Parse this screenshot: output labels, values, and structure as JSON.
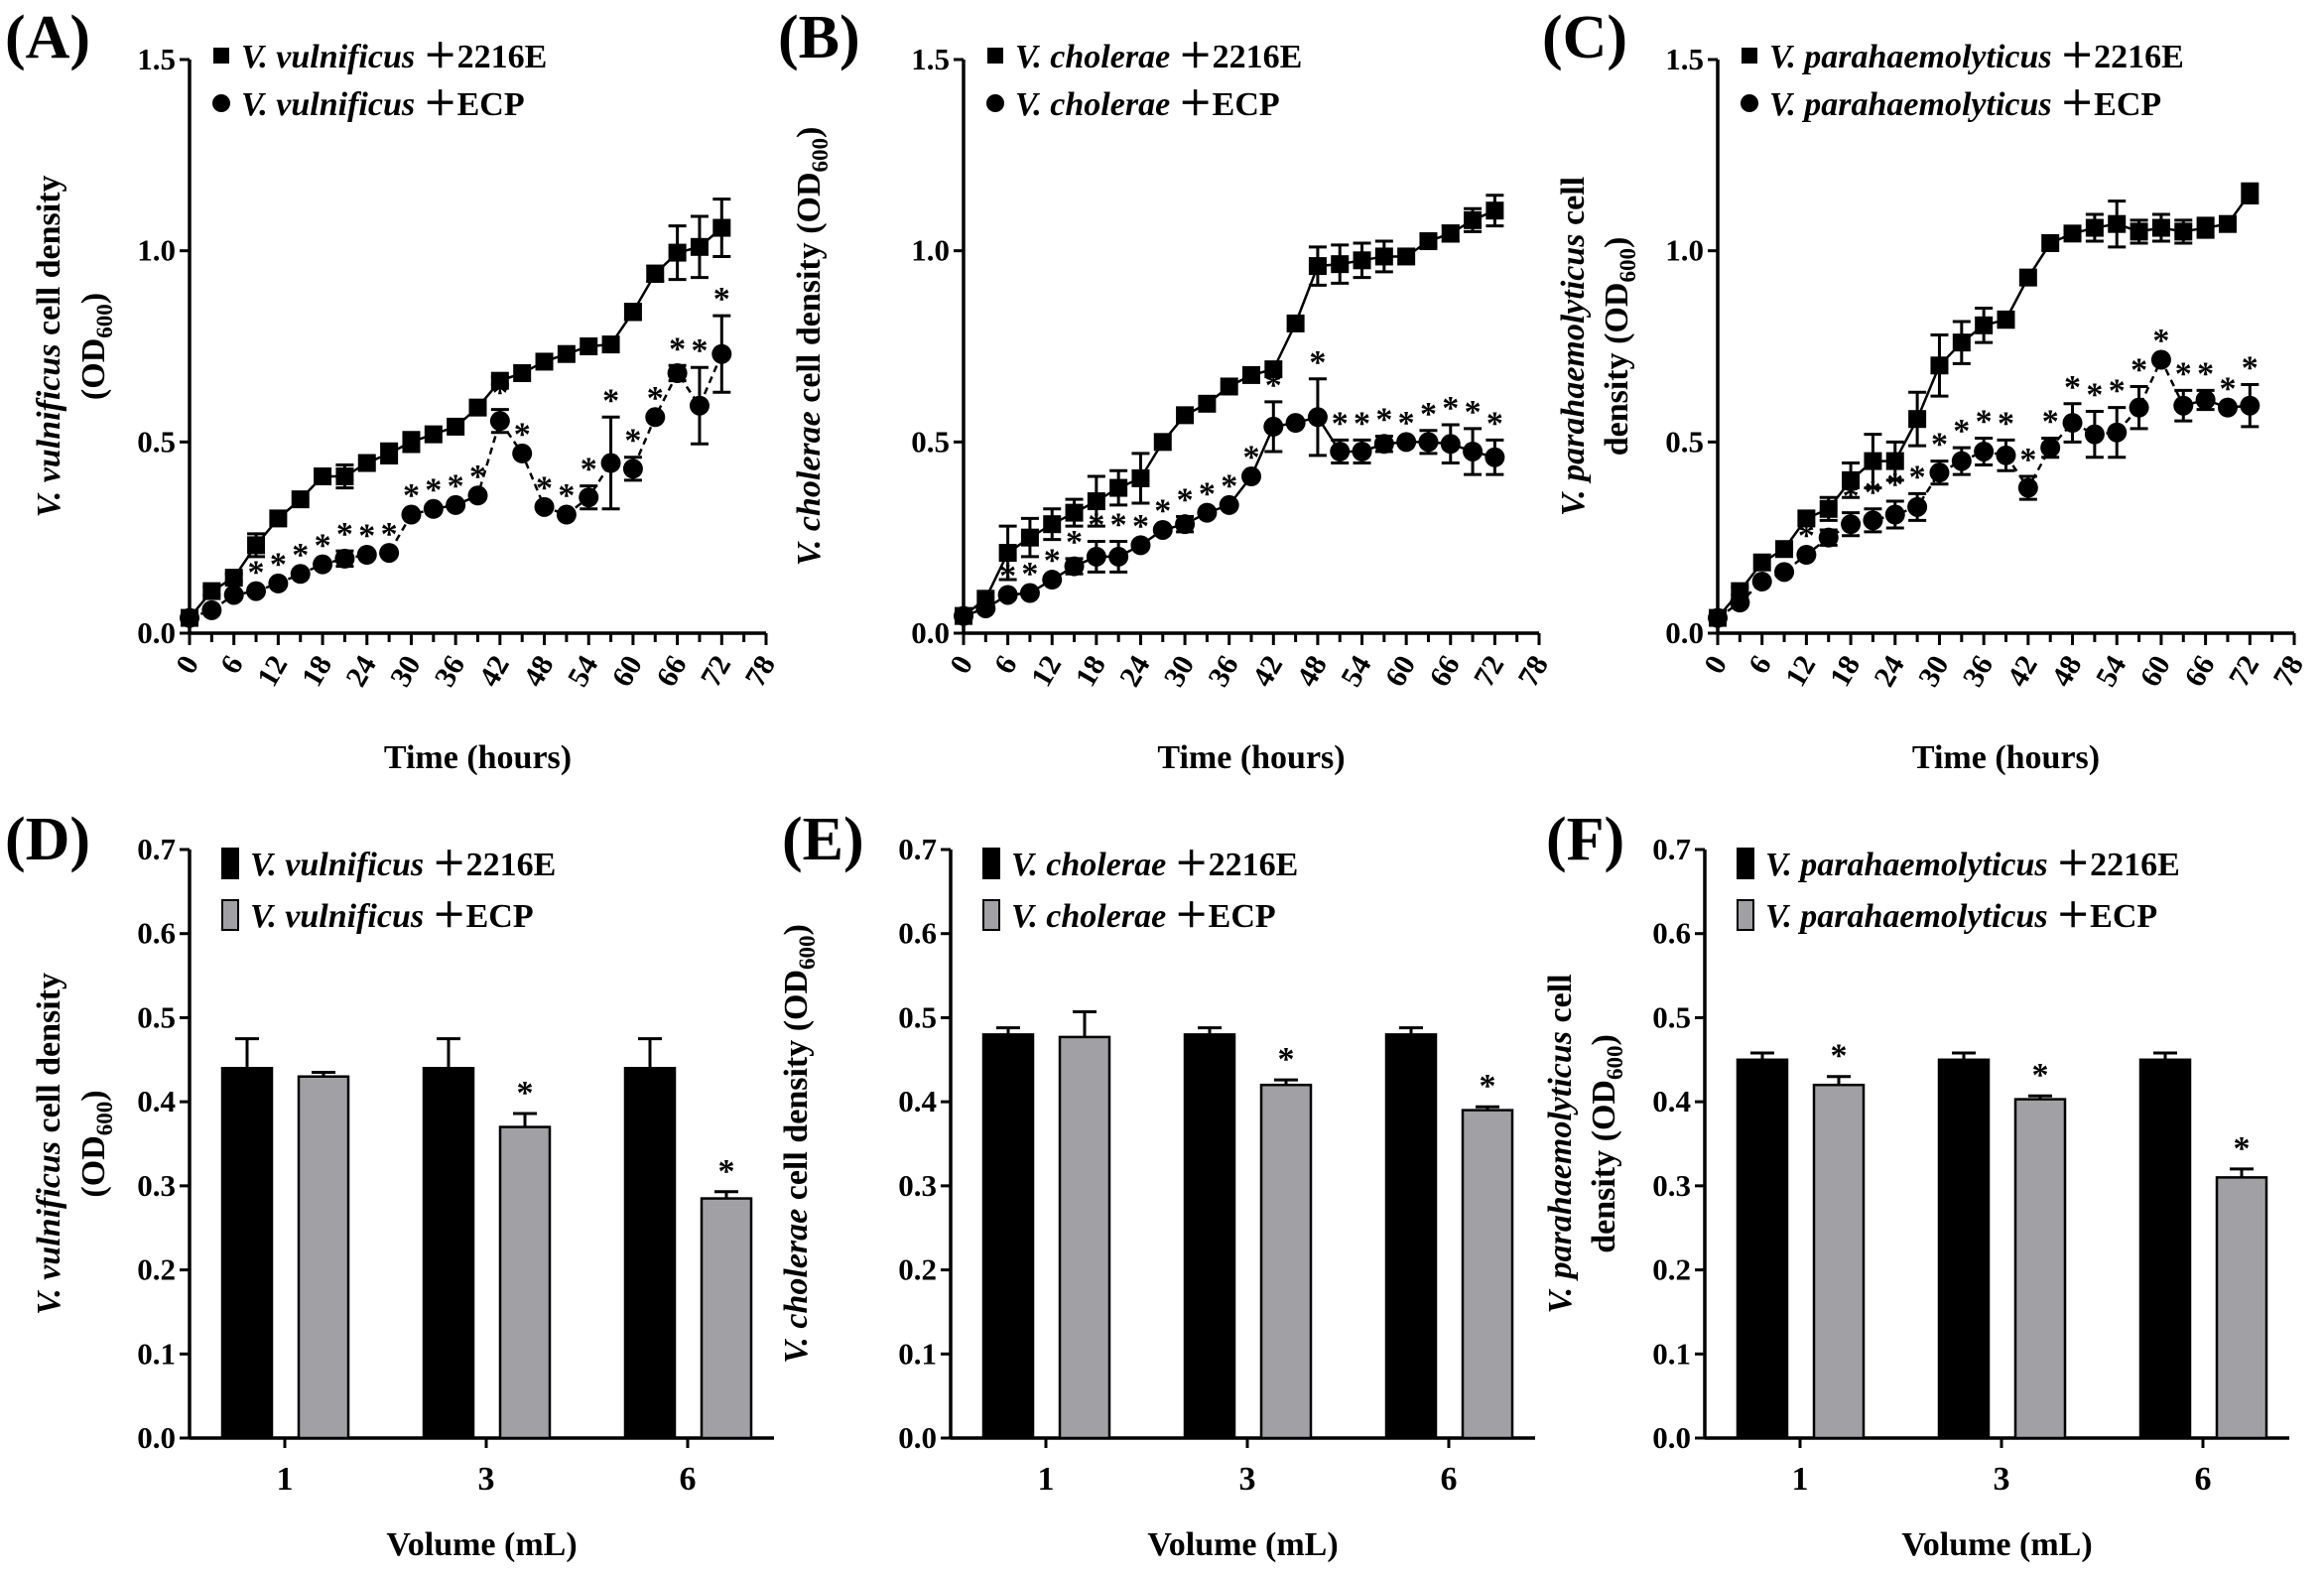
{
  "chart_data": [
    {
      "type": "line",
      "panel_label": "(A)",
      "xlabel": "Time (hours)",
      "ylabel": [
        [
          {
            "t": "V. vulnificus",
            "s": "i"
          },
          {
            "t": " cell density",
            "s": "n"
          }
        ],
        [
          {
            "t": "(OD",
            "s": "n"
          },
          {
            "t": "600",
            "s": "sub"
          },
          {
            "t": ")",
            "s": "n"
          }
        ]
      ],
      "xlim": [
        0,
        78
      ],
      "ylim": [
        0,
        1.5
      ],
      "xticks": [
        "0",
        "6",
        "12",
        "18",
        "24",
        "30",
        "36",
        "42",
        "48",
        "54",
        "60",
        "66",
        "72",
        "78"
      ],
      "yticks": [
        "0.0",
        "0.5",
        "1.0",
        "1.5"
      ],
      "x": [
        0,
        3,
        6,
        9,
        12,
        15,
        18,
        21,
        24,
        27,
        30,
        33,
        36,
        39,
        42,
        45,
        48,
        51,
        54,
        57,
        60,
        63,
        66,
        69,
        72
      ],
      "series": [
        {
          "species": "V. vulnificus",
          "medium": " ＋2216E",
          "marker": "square",
          "dashed": false,
          "values": [
            0.04,
            0.11,
            0.145,
            0.23,
            0.3,
            0.35,
            0.41,
            0.41,
            0.445,
            0.47,
            0.5,
            0.52,
            0.54,
            0.59,
            0.66,
            0.68,
            0.71,
            0.73,
            0.75,
            0.755,
            0.84,
            0.94,
            0.995,
            1.01,
            1.06
          ],
          "errors": [
            0.005,
            0.01,
            0.01,
            0.03,
            0.005,
            0.005,
            0.005,
            0.03,
            0.005,
            0.025,
            0.025,
            0.005,
            0.005,
            0.005,
            0.01,
            0.005,
            0.005,
            0.005,
            0.005,
            0.005,
            0.02,
            0.02,
            0.07,
            0.08,
            0.075
          ],
          "significant": []
        },
        {
          "species": "V. vulnificus",
          "medium": " ＋ECP",
          "marker": "circle",
          "dashed": true,
          "values": [
            0.04,
            0.06,
            0.1,
            0.11,
            0.13,
            0.155,
            0.18,
            0.195,
            0.205,
            0.21,
            0.31,
            0.325,
            0.335,
            0.36,
            0.555,
            0.47,
            0.33,
            0.31,
            0.355,
            0.445,
            0.43,
            0.565,
            0.68,
            0.595,
            0.73
          ],
          "errors": [
            0.005,
            0.005,
            0.005,
            0.005,
            0.005,
            0.005,
            0.005,
            0.02,
            0.005,
            0.005,
            0.005,
            0.005,
            0.005,
            0.005,
            0.03,
            0.005,
            0.005,
            0.005,
            0.03,
            0.12,
            0.03,
            0.005,
            0.02,
            0.1,
            0.1
          ],
          "significant": [
            3,
            4,
            5,
            6,
            7,
            8,
            9,
            10,
            11,
            12,
            13,
            14,
            15,
            16,
            17,
            18,
            19,
            20,
            21,
            22,
            23,
            24
          ]
        }
      ],
      "star": "*"
    },
    {
      "type": "line",
      "panel_label": "(B)",
      "xlabel": "Time (hours)",
      "ylabel": [
        [
          {
            "t": "V. cholerae",
            "s": "i"
          },
          {
            "t": " cell density (OD",
            "s": "n"
          },
          {
            "t": "600",
            "s": "sub"
          },
          {
            "t": ")",
            "s": "n"
          }
        ]
      ],
      "xlim": [
        0,
        78
      ],
      "ylim": [
        0,
        1.5
      ],
      "xticks": [
        "0",
        "6",
        "12",
        "18",
        "24",
        "30",
        "36",
        "42",
        "48",
        "54",
        "60",
        "66",
        "72",
        "78"
      ],
      "yticks": [
        "0.0",
        "0.5",
        "1.0",
        "1.5"
      ],
      "x": [
        0,
        3,
        6,
        9,
        12,
        15,
        18,
        21,
        24,
        27,
        30,
        33,
        36,
        39,
        42,
        45,
        48,
        51,
        54,
        57,
        60,
        63,
        66,
        69,
        72
      ],
      "series": [
        {
          "species": "V. cholerae",
          "medium": " ＋2216E",
          "marker": "square",
          "dashed": false,
          "values": [
            0.045,
            0.09,
            0.21,
            0.25,
            0.285,
            0.315,
            0.345,
            0.38,
            0.405,
            0.5,
            0.57,
            0.6,
            0.645,
            0.675,
            0.69,
            0.81,
            0.96,
            0.965,
            0.975,
            0.985,
            0.985,
            1.025,
            1.045,
            1.08,
            1.105
          ],
          "errors": [
            0.005,
            0.005,
            0.07,
            0.05,
            0.04,
            0.035,
            0.065,
            0.045,
            0.065,
            0.005,
            0.005,
            0.005,
            0.005,
            0.005,
            0.005,
            0.005,
            0.05,
            0.05,
            0.045,
            0.04,
            0.005,
            0.015,
            0.02,
            0.03,
            0.04
          ],
          "significant": []
        },
        {
          "species": "V. cholerae",
          "medium": " ＋ECP",
          "marker": "circle",
          "dashed": false,
          "values": [
            0.045,
            0.065,
            0.1,
            0.105,
            0.14,
            0.175,
            0.2,
            0.2,
            0.23,
            0.27,
            0.285,
            0.315,
            0.335,
            0.41,
            0.54,
            0.55,
            0.565,
            0.475,
            0.475,
            0.495,
            0.5,
            0.5,
            0.495,
            0.475,
            0.46
          ],
          "errors": [
            0.005,
            0.005,
            0.005,
            0.005,
            0.005,
            0.02,
            0.04,
            0.04,
            0.005,
            0.005,
            0.02,
            0.005,
            0.005,
            0.005,
            0.065,
            0.005,
            0.1,
            0.03,
            0.03,
            0.02,
            0.005,
            0.03,
            0.05,
            0.06,
            0.045
          ],
          "significant": [
            2,
            3,
            4,
            5,
            6,
            7,
            8,
            9,
            10,
            11,
            12,
            13,
            14,
            16,
            17,
            18,
            19,
            20,
            21,
            22,
            23,
            24
          ]
        }
      ],
      "star": "*"
    },
    {
      "type": "line",
      "panel_label": "(C)",
      "xlabel": "Time (hours)",
      "ylabel": [
        [
          {
            "t": "V. parahaemolyticus",
            "s": "i"
          },
          {
            "t": " cell",
            "s": "n"
          }
        ],
        [
          {
            "t": "density (OD",
            "s": "n"
          },
          {
            "t": "600",
            "s": "sub"
          },
          {
            "t": ")",
            "s": "n"
          }
        ]
      ],
      "xlim": [
        0,
        78
      ],
      "ylim": [
        0,
        1.5
      ],
      "xticks": [
        "0",
        "6",
        "12",
        "18",
        "24",
        "30",
        "36",
        "42",
        "48",
        "54",
        "60",
        "66",
        "72",
        "78"
      ],
      "yticks": [
        "0.0",
        "0.5",
        "1.0",
        "1.5"
      ],
      "x": [
        0,
        3,
        6,
        9,
        12,
        15,
        18,
        21,
        24,
        27,
        30,
        33,
        36,
        39,
        42,
        45,
        48,
        51,
        54,
        57,
        60,
        63,
        66,
        69,
        72
      ],
      "series": [
        {
          "species": "V. parahaemolyticus",
          "medium": " ＋2216E",
          "marker": "square",
          "dashed": false,
          "values": [
            0.04,
            0.11,
            0.185,
            0.22,
            0.3,
            0.325,
            0.4,
            0.45,
            0.45,
            0.56,
            0.7,
            0.76,
            0.805,
            0.82,
            0.93,
            1.02,
            1.045,
            1.06,
            1.07,
            1.05,
            1.06,
            1.05,
            1.06,
            1.07,
            1.15
          ],
          "errors": [
            0.005,
            0.01,
            0.005,
            0.005,
            0.005,
            0.03,
            0.045,
            0.07,
            0.05,
            0.07,
            0.08,
            0.055,
            0.045,
            0.02,
            0.005,
            0.005,
            0.01,
            0.035,
            0.06,
            0.03,
            0.035,
            0.03,
            0.025,
            0.005,
            0.025
          ],
          "significant": []
        },
        {
          "species": "V. parahaemolyticus",
          "medium": " ＋ECP",
          "marker": "circle",
          "dashed": true,
          "values": [
            0.04,
            0.08,
            0.135,
            0.16,
            0.205,
            0.25,
            0.285,
            0.295,
            0.31,
            0.33,
            0.42,
            0.45,
            0.475,
            0.465,
            0.38,
            0.485,
            0.55,
            0.52,
            0.525,
            0.59,
            0.715,
            0.595,
            0.61,
            0.59,
            0.595
          ],
          "errors": [
            0.005,
            0.005,
            0.005,
            0.005,
            0.005,
            0.02,
            0.03,
            0.03,
            0.035,
            0.035,
            0.03,
            0.035,
            0.035,
            0.04,
            0.03,
            0.025,
            0.05,
            0.06,
            0.065,
            0.055,
            0.005,
            0.04,
            0.025,
            0.005,
            0.055
          ],
          "significant": [
            3,
            4,
            5,
            6,
            7,
            8,
            9,
            10,
            11,
            12,
            13,
            14,
            15,
            16,
            17,
            18,
            19,
            20,
            21,
            22,
            23,
            24
          ]
        }
      ],
      "star": "*"
    },
    {
      "type": "bar",
      "panel_label": "(D)",
      "xlabel": "Volume (mL)",
      "ylabel": [
        [
          {
            "t": "V. vulnificus",
            "s": "i"
          },
          {
            "t": " cell density",
            "s": "n"
          }
        ],
        [
          {
            "t": "(OD",
            "s": "n"
          },
          {
            "t": "600",
            "s": "sub"
          },
          {
            "t": ")",
            "s": "n"
          }
        ]
      ],
      "ylim": [
        0,
        0.7
      ],
      "yticks": [
        "0.0",
        "0.1",
        "0.2",
        "0.3",
        "0.4",
        "0.5",
        "0.6",
        "0.7"
      ],
      "categories": [
        "1",
        "3",
        "6"
      ],
      "series": [
        {
          "species": "V. vulnificus",
          "medium": " ＋2216E",
          "color": "#000000",
          "values": [
            0.44,
            0.44,
            0.44
          ],
          "errors": [
            0.035,
            0.035,
            0.035
          ],
          "significant": [
            false,
            false,
            false
          ]
        },
        {
          "species": "V. vulnificus",
          "medium": " ＋ECP",
          "color": "#a1a1a5",
          "values": [
            0.43,
            0.37,
            0.285
          ],
          "errors": [
            0.005,
            0.016,
            0.008
          ],
          "significant": [
            false,
            true,
            true
          ]
        }
      ],
      "star": "*"
    },
    {
      "type": "bar",
      "panel_label": "(E)",
      "xlabel": "Volume (mL)",
      "ylabel": [
        [
          {
            "t": "V. cholerae",
            "s": "i"
          },
          {
            "t": " cell density (OD",
            "s": "n"
          },
          {
            "t": "600",
            "s": "sub"
          },
          {
            "t": ")",
            "s": "n"
          }
        ]
      ],
      "ylim": [
        0,
        0.7
      ],
      "yticks": [
        "0.0",
        "0.1",
        "0.2",
        "0.3",
        "0.4",
        "0.5",
        "0.6",
        "0.7"
      ],
      "categories": [
        "1",
        "3",
        "6"
      ],
      "series": [
        {
          "species": "V. cholerae",
          "medium": " ＋2216E",
          "color": "#000000",
          "values": [
            0.48,
            0.48,
            0.48
          ],
          "errors": [
            0.008,
            0.008,
            0.008
          ],
          "significant": [
            false,
            false,
            false
          ]
        },
        {
          "species": "V. cholerae",
          "medium": " ＋ECP",
          "color": "#a1a1a5",
          "values": [
            0.477,
            0.42,
            0.39
          ],
          "errors": [
            0.03,
            0.006,
            0.004
          ],
          "significant": [
            false,
            true,
            true
          ]
        }
      ],
      "star": "*"
    },
    {
      "type": "bar",
      "panel_label": "(F)",
      "xlabel": "Volume (mL)",
      "ylabel": [
        [
          {
            "t": "V. parahaemolyticus",
            "s": "i"
          },
          {
            "t": " cell",
            "s": "n"
          }
        ],
        [
          {
            "t": "density (OD",
            "s": "n"
          },
          {
            "t": "600",
            "s": "sub"
          },
          {
            "t": ")",
            "s": "n"
          }
        ]
      ],
      "ylim": [
        0,
        0.7
      ],
      "yticks": [
        "0.0",
        "0.1",
        "0.2",
        "0.3",
        "0.4",
        "0.5",
        "0.6",
        "0.7"
      ],
      "categories": [
        "1",
        "3",
        "6"
      ],
      "series": [
        {
          "species": "V. parahaemolyticus",
          "medium": " ＋2216E",
          "color": "#000000",
          "values": [
            0.45,
            0.45,
            0.45
          ],
          "errors": [
            0.008,
            0.008,
            0.008
          ],
          "significant": [
            false,
            false,
            false
          ]
        },
        {
          "species": "V. parahaemolyticus",
          "medium": " ＋ECP",
          "color": "#a1a1a5",
          "values": [
            0.42,
            0.403,
            0.31
          ],
          "errors": [
            0.01,
            0.004,
            0.01
          ],
          "significant": [
            true,
            true,
            true
          ]
        }
      ],
      "star": "*"
    }
  ]
}
